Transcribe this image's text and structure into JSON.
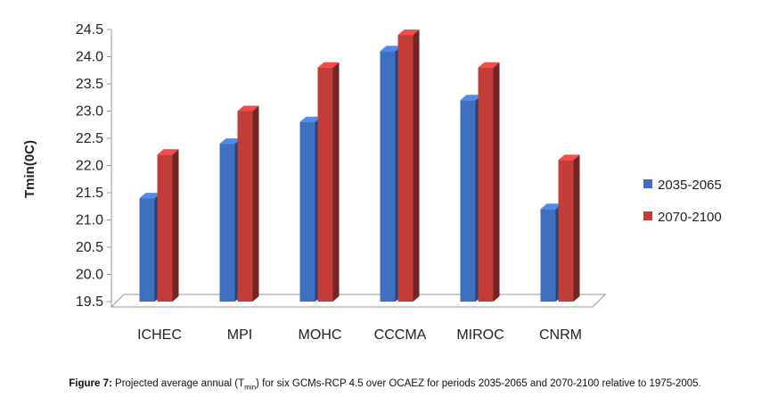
{
  "chart_data": {
    "type": "bar",
    "ylabel": "Tmin(0C)",
    "xlabel": "",
    "ylim": [
      19.5,
      24.5
    ],
    "yticks": [
      "19.5",
      "20.0",
      "20.5",
      "21.0",
      "21.5",
      "22.0",
      "22.5",
      "23.0",
      "23.5",
      "24.0",
      "24.5"
    ],
    "categories": [
      "ICHEC",
      "MPI",
      "MOHC",
      "CCCMA",
      "MIROC",
      "CNRM"
    ],
    "series": [
      {
        "name": "2035-2065",
        "values": [
          21.4,
          22.4,
          22.8,
          24.1,
          23.2,
          21.2
        ],
        "color": "#3f6fbf"
      },
      {
        "name": "2070-2100",
        "values": [
          22.2,
          23.0,
          23.8,
          24.4,
          23.8,
          22.1
        ],
        "color": "#c23d3a"
      }
    ],
    "legend_position": "right",
    "grid": false,
    "style": "3d-bar"
  },
  "caption": {
    "label": "Figure 7:",
    "text_before": "Projected average annual (T",
    "subscript": "min",
    "text_after": ") for six GCMs-RCP 4.5 over OCAEZ for periods 2035-2065 and 2070-2100 relative to 1975-2005."
  }
}
